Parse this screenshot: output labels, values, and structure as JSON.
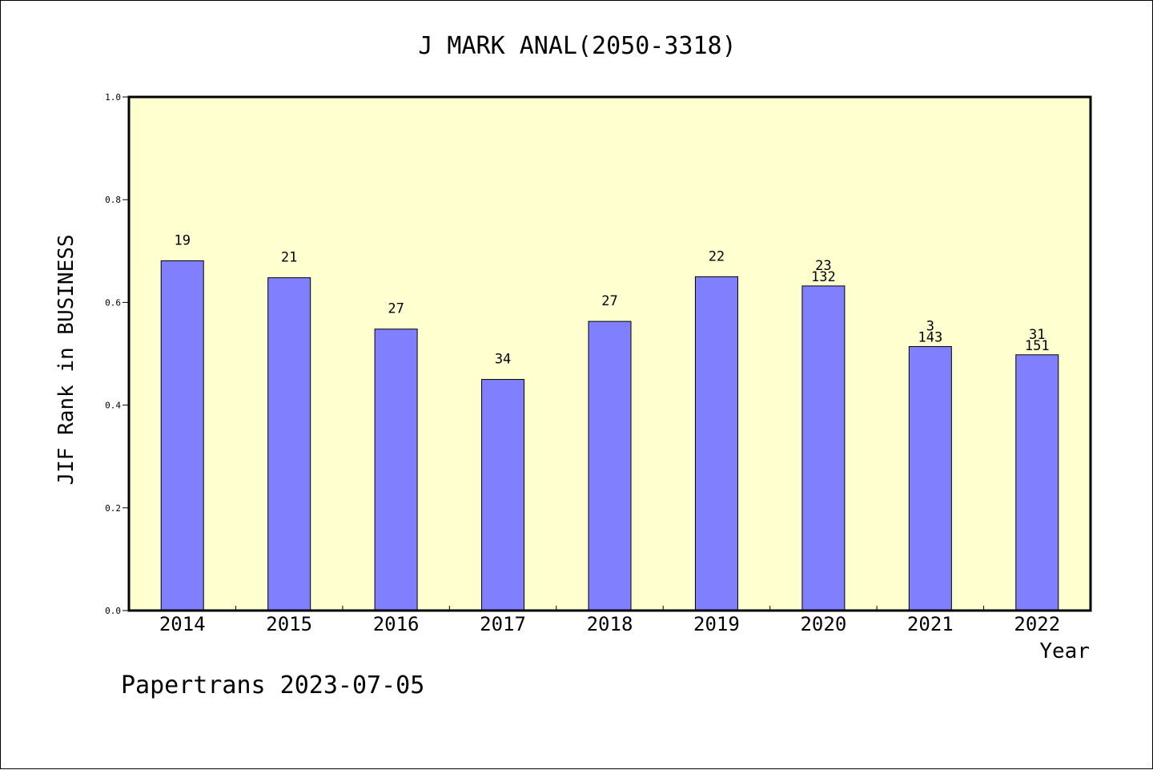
{
  "chart_data": {
    "type": "bar",
    "title": "J MARK ANAL(2050-3318)",
    "xlabel": "Year",
    "ylabel": "JIF Rank in BUSINESS",
    "ylim": [
      0,
      1.0
    ],
    "yticks": [
      "0.0",
      "0.2",
      "0.4",
      "0.6",
      "0.8",
      "1.0"
    ],
    "categories": [
      "2014",
      "2015",
      "2016",
      "2017",
      "2018",
      "2019",
      "2020",
      "2021",
      "2022"
    ],
    "values": [
      0.681,
      0.648,
      0.548,
      0.45,
      0.563,
      0.65,
      0.632,
      0.514,
      0.498
    ],
    "labels": [
      [
        "19"
      ],
      [
        "21"
      ],
      [
        "27"
      ],
      [
        "34"
      ],
      [
        "27"
      ],
      [
        "22"
      ],
      [
        "23",
        "132"
      ],
      [
        "3",
        "143"
      ],
      [
        "31",
        "151"
      ]
    ],
    "grid": false,
    "colors": {
      "plot_background": "#ffffd0",
      "bar_fill": "#8080ff",
      "bar_stroke": "#000000"
    }
  },
  "footer": "Papertrans 2023-07-05"
}
